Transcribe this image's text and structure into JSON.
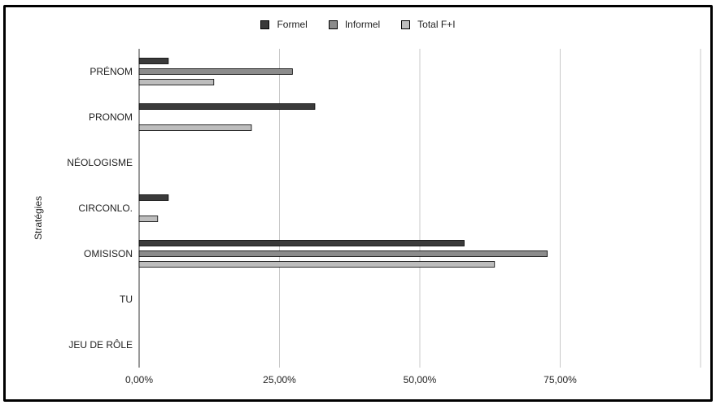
{
  "chart_data": {
    "type": "bar",
    "orientation": "horizontal",
    "ylabel": "Stratégies",
    "xlabel": "",
    "categories": [
      "PRÉNOM",
      "PRONOM",
      "NÉOLOGISME",
      "CIRCONLO.",
      "OMISISON",
      "TU",
      "JEU DE RÔLE"
    ],
    "series": [
      {
        "name": "Formel",
        "color": "#3a3a3a",
        "values": [
          5.2,
          31.3,
          0,
          5.2,
          57.9,
          0,
          0
        ]
      },
      {
        "name": "Informel",
        "color": "#8c8c8c",
        "values": [
          27.3,
          0,
          0,
          0,
          72.7,
          0,
          0
        ]
      },
      {
        "name": "Total F+I",
        "color": "#bdbdbd",
        "values": [
          13.3,
          20.0,
          0,
          3.3,
          63.3,
          0,
          0
        ]
      }
    ],
    "xlim": [
      0,
      100
    ],
    "xticks": [
      0,
      25,
      50,
      75
    ],
    "xtick_labels": [
      "0,00%",
      "25,00%",
      "50,00%",
      "75,00%"
    ],
    "grid": true,
    "legend_position": "top"
  }
}
